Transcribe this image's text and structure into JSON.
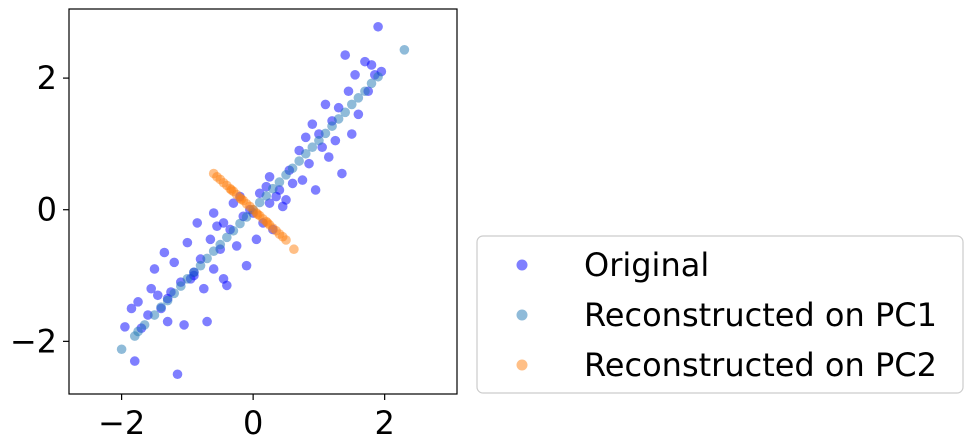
{
  "chart_data": {
    "type": "scatter",
    "title": "",
    "xlabel": "",
    "ylabel": "",
    "xlim": [
      -2.8,
      3.1
    ],
    "ylim": [
      -2.8,
      3.05
    ],
    "xticks": [
      -2,
      0,
      2
    ],
    "yticks": [
      -2,
      0,
      2
    ],
    "xtick_labels": [
      "−2",
      "0",
      "2"
    ],
    "ytick_labels": [
      "−2",
      "0",
      "2"
    ],
    "grid": false,
    "legend_position": "lower-right-outside",
    "series": [
      {
        "name": "Original",
        "color": "#0000ff",
        "points": [
          [
            -1.95,
            -1.78
          ],
          [
            -1.85,
            -1.5
          ],
          [
            -1.8,
            -2.3
          ],
          [
            -1.75,
            -1.4
          ],
          [
            -1.7,
            -1.8
          ],
          [
            -1.6,
            -1.6
          ],
          [
            -1.55,
            -1.2
          ],
          [
            -1.5,
            -0.9
          ],
          [
            -1.45,
            -1.3
          ],
          [
            -1.4,
            -1.5
          ],
          [
            -1.35,
            -0.65
          ],
          [
            -1.3,
            -1.7
          ],
          [
            -1.25,
            -1.25
          ],
          [
            -1.2,
            -0.8
          ],
          [
            -1.15,
            -2.5
          ],
          [
            -1.1,
            -1.1
          ],
          [
            -1.05,
            -1.75
          ],
          [
            -1.0,
            -0.5
          ],
          [
            -0.95,
            -1.05
          ],
          [
            -0.9,
            -0.95
          ],
          [
            -0.85,
            -0.2
          ],
          [
            -0.8,
            -0.75
          ],
          [
            -0.75,
            -1.2
          ],
          [
            -0.7,
            -1.7
          ],
          [
            -0.65,
            -0.45
          ],
          [
            -0.6,
            -0.9
          ],
          [
            -0.55,
            -0.25
          ],
          [
            -0.5,
            -0.6
          ],
          [
            -0.45,
            -1.05
          ],
          [
            -0.4,
            -1.15
          ],
          [
            -0.35,
            -0.3
          ],
          [
            -0.3,
            0.1
          ],
          [
            -0.25,
            -0.55
          ],
          [
            -0.2,
            0.2
          ],
          [
            -0.15,
            -0.1
          ],
          [
            -0.1,
            -0.85
          ],
          [
            -0.05,
            0.0
          ],
          [
            0.05,
            -0.45
          ],
          [
            0.1,
            0.25
          ],
          [
            0.15,
            -0.2
          ],
          [
            0.2,
            0.35
          ],
          [
            0.25,
            0.1
          ],
          [
            0.3,
            -0.3
          ],
          [
            0.35,
            0.2
          ],
          [
            0.4,
            0.3
          ],
          [
            0.45,
            0.05
          ],
          [
            0.5,
            0.15
          ],
          [
            0.55,
            0.6
          ],
          [
            0.6,
            0.4
          ],
          [
            0.7,
            0.9
          ],
          [
            0.75,
            0.45
          ],
          [
            0.8,
            1.1
          ],
          [
            0.85,
            0.7
          ],
          [
            0.9,
            1.3
          ],
          [
            0.95,
            0.3
          ],
          [
            1.0,
            1.15
          ],
          [
            1.05,
            0.95
          ],
          [
            1.1,
            1.6
          ],
          [
            1.15,
            0.8
          ],
          [
            1.2,
            1.35
          ],
          [
            1.25,
            1.05
          ],
          [
            1.3,
            1.55
          ],
          [
            1.35,
            0.55
          ],
          [
            1.4,
            2.35
          ],
          [
            1.45,
            1.8
          ],
          [
            1.5,
            1.15
          ],
          [
            1.55,
            2.05
          ],
          [
            1.6,
            1.45
          ],
          [
            1.7,
            2.25
          ],
          [
            1.75,
            1.8
          ],
          [
            1.8,
            2.2
          ],
          [
            1.85,
            2.05
          ],
          [
            1.9,
            2.78
          ],
          [
            1.95,
            2.1
          ],
          [
            -1.3,
            -1.35
          ],
          [
            -0.9,
            -1.0
          ],
          [
            -0.6,
            -0.05
          ],
          [
            -0.45,
            -0.2
          ],
          [
            0.0,
            -0.05
          ],
          [
            0.25,
            0.5
          ]
        ]
      },
      {
        "name": "Reconstructed on PC1",
        "color": "#1f77b4",
        "points": [
          [
            -2.0,
            -2.12
          ],
          [
            -1.8,
            -1.92
          ],
          [
            -1.65,
            -1.75
          ],
          [
            -1.5,
            -1.6
          ],
          [
            -1.4,
            -1.48
          ],
          [
            -1.3,
            -1.38
          ],
          [
            -1.2,
            -1.27
          ],
          [
            -1.1,
            -1.16
          ],
          [
            -1.0,
            -1.05
          ],
          [
            -0.9,
            -0.95
          ],
          [
            -0.8,
            -0.85
          ],
          [
            -0.7,
            -0.74
          ],
          [
            -0.6,
            -0.63
          ],
          [
            -0.5,
            -0.53
          ],
          [
            -0.4,
            -0.42
          ],
          [
            -0.3,
            -0.32
          ],
          [
            -0.2,
            -0.21
          ],
          [
            -0.1,
            -0.11
          ],
          [
            0.0,
            0.0
          ],
          [
            0.1,
            0.11
          ],
          [
            0.2,
            0.21
          ],
          [
            0.3,
            0.32
          ],
          [
            0.4,
            0.42
          ],
          [
            0.5,
            0.53
          ],
          [
            0.6,
            0.63
          ],
          [
            0.7,
            0.74
          ],
          [
            0.8,
            0.85
          ],
          [
            0.9,
            0.95
          ],
          [
            1.0,
            1.05
          ],
          [
            1.1,
            1.16
          ],
          [
            1.2,
            1.27
          ],
          [
            1.3,
            1.38
          ],
          [
            1.4,
            1.48
          ],
          [
            1.5,
            1.6
          ],
          [
            1.6,
            1.7
          ],
          [
            1.7,
            1.8
          ],
          [
            1.8,
            1.92
          ],
          [
            1.9,
            2.02
          ],
          [
            2.3,
            2.43
          ],
          [
            -1.75,
            -1.85
          ]
        ]
      },
      {
        "name": "Reconstructed on PC2",
        "color": "#ff7f0e",
        "points": [
          [
            -0.6,
            0.55
          ],
          [
            -0.55,
            0.5
          ],
          [
            -0.5,
            0.46
          ],
          [
            -0.45,
            0.41
          ],
          [
            -0.4,
            0.37
          ],
          [
            -0.35,
            0.32
          ],
          [
            -0.3,
            0.28
          ],
          [
            -0.25,
            0.23
          ],
          [
            -0.2,
            0.18
          ],
          [
            -0.15,
            0.14
          ],
          [
            -0.1,
            0.09
          ],
          [
            -0.05,
            0.05
          ],
          [
            0.0,
            0.0
          ],
          [
            0.05,
            -0.05
          ],
          [
            0.1,
            -0.09
          ],
          [
            0.15,
            -0.14
          ],
          [
            0.2,
            -0.18
          ],
          [
            0.25,
            -0.23
          ],
          [
            0.3,
            -0.28
          ],
          [
            0.35,
            -0.32
          ],
          [
            0.4,
            -0.37
          ],
          [
            0.45,
            -0.41
          ],
          [
            0.5,
            -0.46
          ],
          [
            0.62,
            -0.6
          ],
          [
            -0.33,
            0.3
          ],
          [
            0.07,
            -0.07
          ],
          [
            0.22,
            -0.2
          ],
          [
            -0.18,
            0.16
          ]
        ]
      }
    ]
  }
}
